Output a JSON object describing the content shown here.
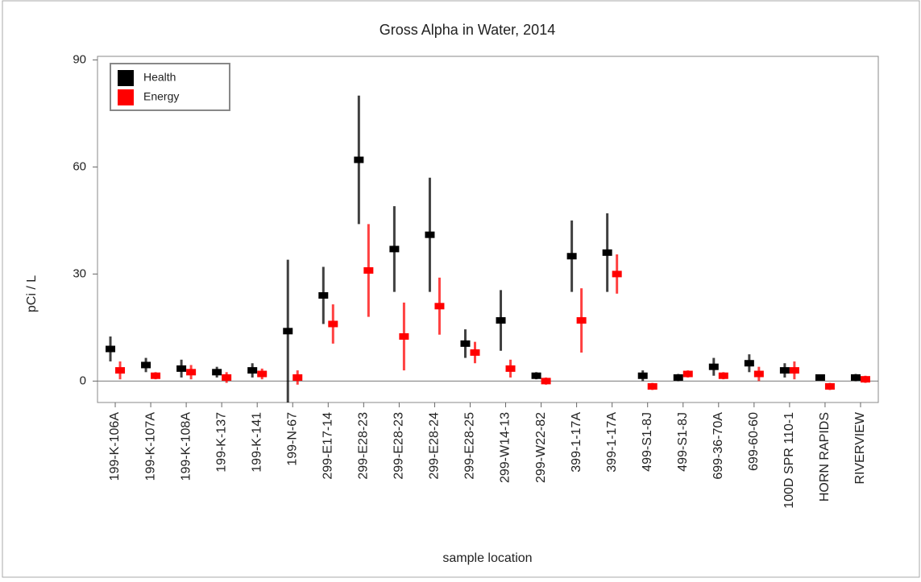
{
  "chart_data": {
    "type": "errorbar",
    "title": "Gross Alpha in Water, 2014",
    "x_label": "sample location",
    "y_label": "pCi / L",
    "categories": [
      "199-K-106A",
      "199-K-107A",
      "199-K-108A",
      "199-K-137",
      "199-K-141",
      "199-N-67",
      "299-E17-14",
      "299-E28-23",
      "299-E28-23",
      "299-E28-24",
      "299-E28-25",
      "299-W14-13",
      "299-W22-82",
      "399-1-17A",
      "399-1-17A",
      "499-S1-8J",
      "499-S1-8J",
      "699-36-70A",
      "699-60-60",
      "100D SPR 110-1",
      "HORN RAPIDS",
      "RIVERVIEW"
    ],
    "series": [
      {
        "name": "Health",
        "color": "#000000",
        "values": [
          9,
          4.5,
          3.5,
          2.5,
          3,
          14,
          24,
          62,
          37,
          41,
          10.5,
          17,
          1.5,
          35,
          36,
          1.5,
          1,
          4,
          5,
          3,
          1,
          1
        ],
        "errors": [
          3.5,
          2,
          2.5,
          1.5,
          2,
          20,
          8,
          18,
          12,
          16,
          4,
          8.5,
          1,
          10,
          11,
          1.5,
          1,
          2.5,
          2.5,
          2,
          0.5,
          1
        ]
      },
      {
        "name": "Energy",
        "color": "#ff0000",
        "values": [
          3,
          1.5,
          2.5,
          1,
          2,
          1,
          16,
          31,
          12.5,
          21,
          8,
          3.5,
          0,
          17,
          30,
          -1.5,
          2,
          1.5,
          2,
          3,
          -1.5,
          0.5
        ],
        "errors": [
          2.5,
          1,
          2,
          1.5,
          1.5,
          2,
          5.5,
          13,
          9.5,
          8,
          3,
          2.5,
          1,
          9,
          5.5,
          1,
          1,
          1,
          2,
          2.5,
          1,
          1
        ]
      }
    ],
    "ylim": [
      -6,
      91
    ],
    "yticks": [
      0,
      30,
      60,
      90
    ],
    "zero_line": true,
    "legend": "upper-left"
  }
}
